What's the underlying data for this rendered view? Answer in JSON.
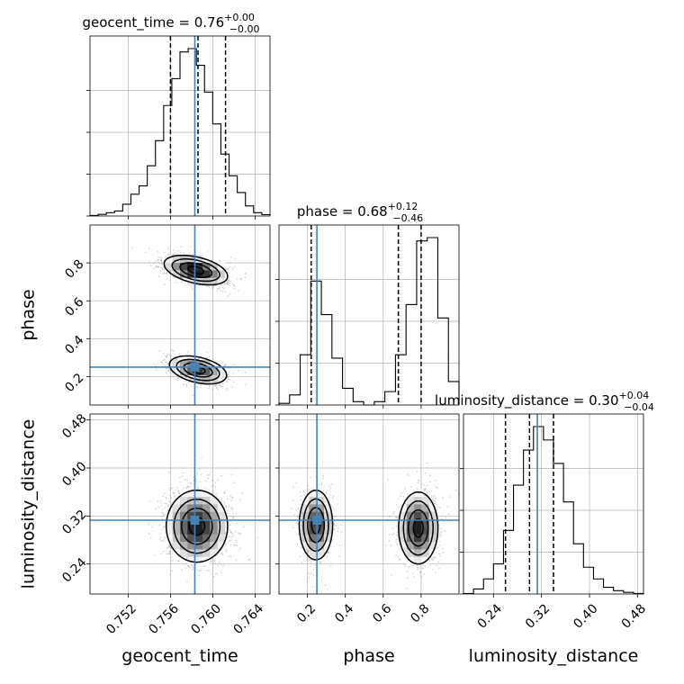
{
  "chart_data": {
    "type": "corner",
    "parameters": [
      {
        "name": "geocent_time",
        "xlabel": "geocent_time",
        "ylabel": "",
        "range": [
          0.7484,
          0.7654
        ],
        "ticks": [
          0.752,
          0.756,
          0.76,
          0.764
        ],
        "tick_labels": [
          "0.752",
          "0.756",
          "0.760",
          "0.764"
        ],
        "truth": 0.7583,
        "title": {
          "main": "geocent_time = 0.76",
          "sup": "+0.00",
          "sub": "−0.00"
        },
        "quantiles": [
          0.756,
          0.7586,
          0.7612
        ],
        "hist": [
          0.3,
          1.0,
          2.0,
          3.0,
          7.0,
          13.0,
          18.0,
          30.0,
          45.0,
          66.0,
          82.0,
          98.0,
          100.0,
          90.0,
          74.0,
          55.0,
          37.0,
          24.0,
          14.0,
          6.0,
          2.0,
          0.8
        ]
      },
      {
        "name": "phase",
        "xlabel": "phase",
        "ylabel": "phase",
        "range": [
          0.05,
          1.0
        ],
        "ticks": [
          0.2,
          0.4,
          0.6,
          0.8
        ],
        "tick_labels": [
          "0.2",
          "0.4",
          "0.6",
          "0.8"
        ],
        "truth": 0.25,
        "title": {
          "main": "phase = 0.68",
          "sup": "+0.12",
          "sub": "−0.46"
        },
        "quantiles": [
          0.22,
          0.68,
          0.8
        ],
        "hist": [
          1.0,
          6.0,
          30.0,
          74.0,
          54.0,
          28.0,
          10.0,
          2.0,
          0.0,
          2.0,
          8.0,
          30.0,
          60.0,
          98.0,
          100.0,
          52.0,
          14.0
        ]
      },
      {
        "name": "luminosity_distance",
        "xlabel": "luminosity_distance",
        "ylabel": "luminosity_distance",
        "range": [
          0.19,
          0.49
        ],
        "ticks": [
          0.24,
          0.32,
          0.4,
          0.48
        ],
        "tick_labels": [
          "0.24",
          "0.32",
          "0.40",
          "0.48"
        ],
        "truth": 0.313,
        "title": {
          "main": "luminosity_distance = 0.30",
          "sup": "+0.04",
          "sub": "−0.04"
        },
        "quantiles": [
          0.26,
          0.3,
          0.34
        ],
        "hist": [
          0.3,
          3.0,
          9.0,
          18.0,
          38.0,
          65.0,
          86.0,
          100.0,
          92.0,
          78.0,
          55.0,
          30.0,
          16.0,
          9.0,
          4.0,
          2.0,
          1.0,
          0.3
        ]
      }
    ],
    "pairs": [
      {
        "x": "geocent_time",
        "y": "phase",
        "modes": [
          {
            "cx": 0.7584,
            "cy": 0.762,
            "sx": 0.0015,
            "sy": 0.039,
            "rho": -0.42,
            "w": 0.6
          },
          {
            "cx": 0.7586,
            "cy": 0.235,
            "sx": 0.00135,
            "sy": 0.037,
            "rho": -0.38,
            "w": 0.4
          }
        ]
      },
      {
        "x": "geocent_time",
        "y": "luminosity_distance",
        "modes": [
          {
            "cx": 0.7585,
            "cy": 0.303,
            "sx": 0.00145,
            "sy": 0.03,
            "rho": 0.0,
            "w": 1.0
          }
        ]
      },
      {
        "x": "phase",
        "y": "luminosity_distance",
        "modes": [
          {
            "cx": 0.245,
            "cy": 0.305,
            "sx": 0.044,
            "sy": 0.029,
            "rho": 0.0,
            "w": 0.42
          },
          {
            "cx": 0.785,
            "cy": 0.3,
            "sx": 0.052,
            "sy": 0.03,
            "rho": 0.0,
            "w": 0.58
          }
        ]
      }
    ],
    "truth_color": "#4682b4",
    "grid": true
  }
}
